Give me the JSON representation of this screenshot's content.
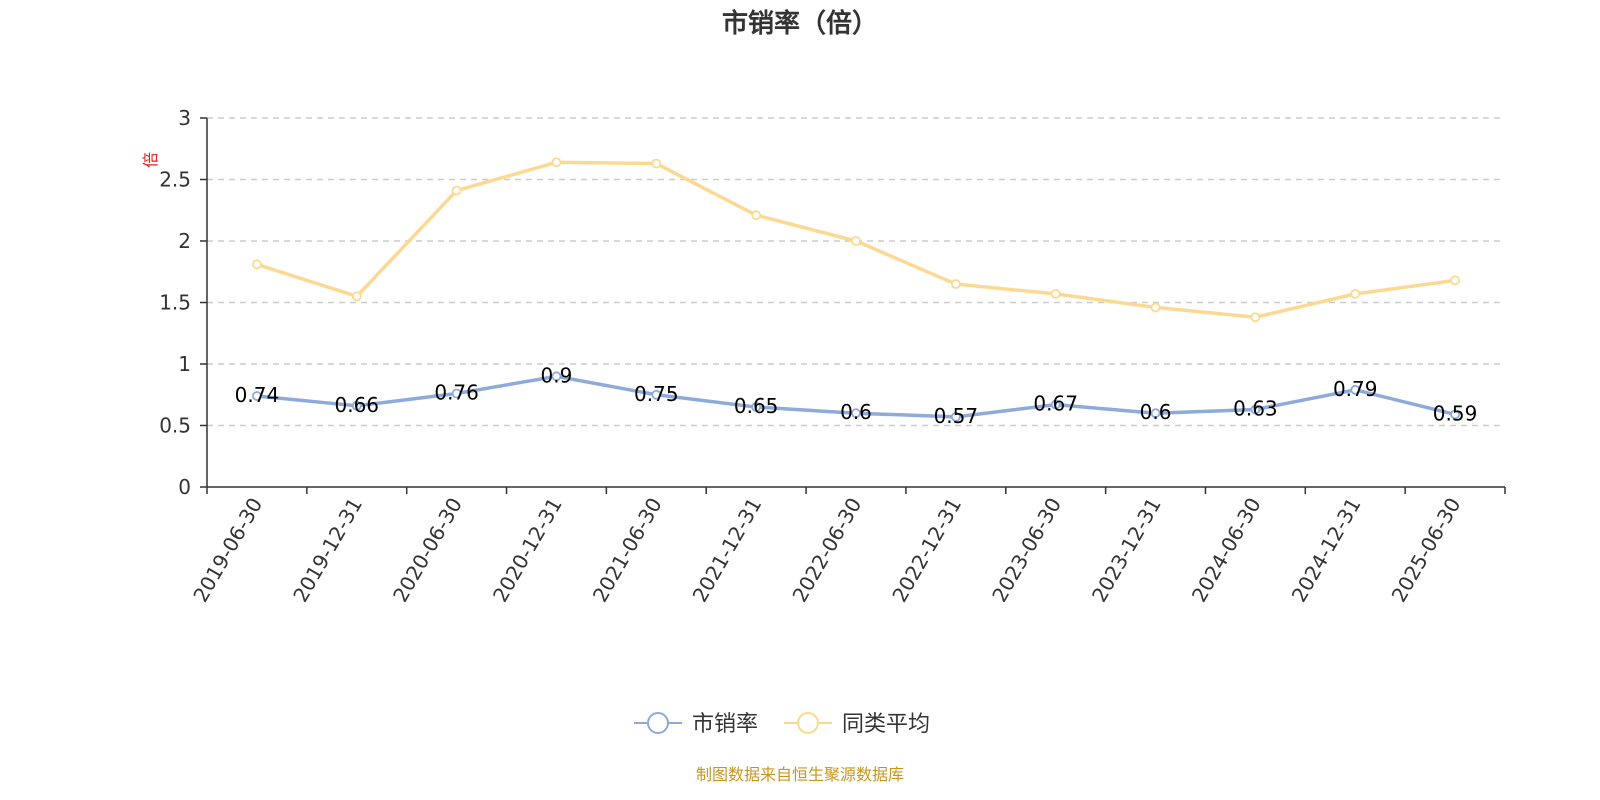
{
  "chart_data": {
    "type": "line",
    "title": "市销率（倍）",
    "ylabel": "倍",
    "ylim": [
      0,
      3
    ],
    "yticks": [
      "0",
      "0.5",
      "1",
      "1.5",
      "2",
      "2.5",
      "3"
    ],
    "grid": true,
    "legend_position": "bottom",
    "categories": [
      "2019-06-30",
      "2019-12-31",
      "2020-06-30",
      "2020-12-31",
      "2021-06-30",
      "2021-12-31",
      "2022-06-30",
      "2022-12-31",
      "2023-06-30",
      "2023-12-31",
      "2024-06-30",
      "2024-12-31",
      "2025-06-30"
    ],
    "series": [
      {
        "name": "市销率",
        "color": "#8eaadb",
        "values": [
          0.74,
          0.66,
          0.76,
          0.9,
          0.75,
          0.65,
          0.6,
          0.57,
          0.67,
          0.6,
          0.63,
          0.79,
          0.59
        ],
        "labels": [
          "0.74",
          "0.66",
          "0.76",
          "0.9",
          "0.75",
          "0.65",
          "0.6",
          "0.57",
          "0.67",
          "0.6",
          "0.63",
          "0.79",
          "0.59"
        ]
      },
      {
        "name": "同类平均",
        "color": "#fcd993",
        "values": [
          1.81,
          1.55,
          2.41,
          2.64,
          2.63,
          2.21,
          2.0,
          1.65,
          1.57,
          1.46,
          1.38,
          1.57,
          1.68
        ]
      }
    ]
  },
  "source": "制图数据来自恒生聚源数据库"
}
